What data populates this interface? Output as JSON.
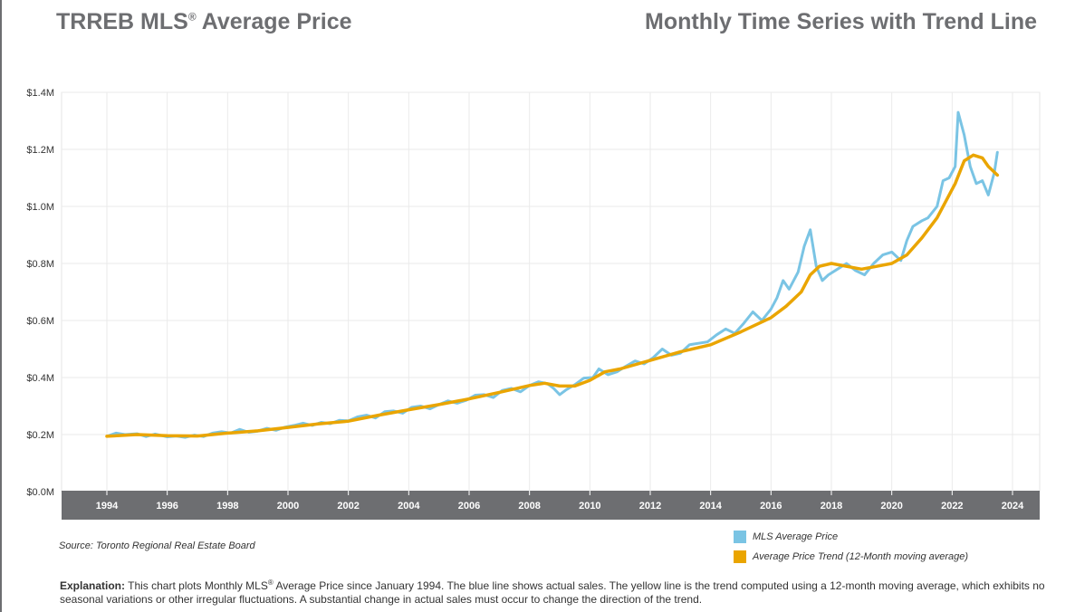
{
  "header": {
    "title_left_prefix": "TRREB MLS",
    "title_left_reg": "®",
    "title_left_suffix": " Average Price",
    "title_right": "Monthly Time Series with Trend Line"
  },
  "source": "Source: Toronto Regional Real Estate Board",
  "legend": [
    {
      "label": "MLS Average Price",
      "color": "#7ac4e4"
    },
    {
      "label": "Average Price Trend (12-Month moving average)",
      "color": "#eaa500"
    }
  ],
  "explanation": {
    "label": "Explanation:",
    "text_a": " This chart plots Monthly MLS",
    "reg": "®",
    "text_b": " Average Price since January 1994. The blue line shows actual sales. The yellow line is the trend computed using a 12-month moving average, which exhibits no seasonal variations or other irregular fluctuations. A substantial change in actual sales must occur to change the direction of the trend."
  },
  "chart_data": {
    "type": "line",
    "title": "",
    "xlabel": "",
    "ylabel": "",
    "xlim": [
      1992.5,
      2024.9
    ],
    "ylim": [
      0,
      1400000
    ],
    "x_ticks": [
      1994,
      1996,
      1998,
      2000,
      2002,
      2004,
      2006,
      2008,
      2010,
      2012,
      2014,
      2016,
      2018,
      2020,
      2022,
      2024
    ],
    "y_ticks": [
      {
        "value": 0,
        "label": "$0.0M"
      },
      {
        "value": 200000,
        "label": "$0.2M"
      },
      {
        "value": 400000,
        "label": "$0.4M"
      },
      {
        "value": 600000,
        "label": "$0.6M"
      },
      {
        "value": 800000,
        "label": "$0.8M"
      },
      {
        "value": 1000000,
        "label": "$1.0M"
      },
      {
        "value": 1200000,
        "label": "$1.2M"
      },
      {
        "value": 1400000,
        "label": "$1.4M"
      }
    ],
    "grid": true,
    "legend_position": "bottom-right",
    "series": [
      {
        "name": "MLS Average Price",
        "color": "#7ac4e4",
        "points": [
          [
            1994.0,
            194000
          ],
          [
            1994.3,
            205000
          ],
          [
            1994.6,
            200000
          ],
          [
            1995.0,
            203000
          ],
          [
            1995.3,
            193000
          ],
          [
            1995.6,
            202000
          ],
          [
            1996.0,
            192000
          ],
          [
            1996.3,
            195000
          ],
          [
            1996.6,
            190000
          ],
          [
            1996.9,
            198000
          ],
          [
            1997.2,
            193000
          ],
          [
            1997.5,
            205000
          ],
          [
            1997.8,
            210000
          ],
          [
            1998.1,
            205000
          ],
          [
            1998.4,
            218000
          ],
          [
            1998.7,
            208000
          ],
          [
            1999.0,
            212000
          ],
          [
            1999.3,
            222000
          ],
          [
            1999.6,
            215000
          ],
          [
            1999.9,
            226000
          ],
          [
            2000.2,
            232000
          ],
          [
            2000.5,
            240000
          ],
          [
            2000.8,
            232000
          ],
          [
            2001.1,
            243000
          ],
          [
            2001.4,
            238000
          ],
          [
            2001.7,
            250000
          ],
          [
            2002.0,
            248000
          ],
          [
            2002.3,
            262000
          ],
          [
            2002.6,
            268000
          ],
          [
            2002.9,
            258000
          ],
          [
            2003.2,
            280000
          ],
          [
            2003.5,
            283000
          ],
          [
            2003.8,
            275000
          ],
          [
            2004.1,
            296000
          ],
          [
            2004.4,
            300000
          ],
          [
            2004.7,
            290000
          ],
          [
            2005.0,
            305000
          ],
          [
            2005.3,
            318000
          ],
          [
            2005.6,
            310000
          ],
          [
            2005.9,
            320000
          ],
          [
            2006.2,
            338000
          ],
          [
            2006.5,
            340000
          ],
          [
            2006.8,
            330000
          ],
          [
            2007.1,
            355000
          ],
          [
            2007.4,
            362000
          ],
          [
            2007.7,
            350000
          ],
          [
            2008.0,
            372000
          ],
          [
            2008.3,
            385000
          ],
          [
            2008.6,
            378000
          ],
          [
            2008.8,
            362000
          ],
          [
            2009.0,
            340000
          ],
          [
            2009.2,
            356000
          ],
          [
            2009.5,
            375000
          ],
          [
            2009.8,
            398000
          ],
          [
            2010.1,
            400000
          ],
          [
            2010.3,
            430000
          ],
          [
            2010.6,
            410000
          ],
          [
            2010.9,
            420000
          ],
          [
            2011.2,
            440000
          ],
          [
            2011.5,
            458000
          ],
          [
            2011.8,
            448000
          ],
          [
            2012.1,
            470000
          ],
          [
            2012.4,
            500000
          ],
          [
            2012.7,
            478000
          ],
          [
            2013.0,
            485000
          ],
          [
            2013.3,
            515000
          ],
          [
            2013.6,
            520000
          ],
          [
            2013.9,
            525000
          ],
          [
            2014.2,
            550000
          ],
          [
            2014.5,
            570000
          ],
          [
            2014.8,
            555000
          ],
          [
            2015.1,
            590000
          ],
          [
            2015.4,
            630000
          ],
          [
            2015.7,
            600000
          ],
          [
            2016.0,
            640000
          ],
          [
            2016.2,
            680000
          ],
          [
            2016.4,
            740000
          ],
          [
            2016.6,
            710000
          ],
          [
            2016.9,
            770000
          ],
          [
            2017.1,
            860000
          ],
          [
            2017.3,
            918000
          ],
          [
            2017.5,
            790000
          ],
          [
            2017.7,
            740000
          ],
          [
            2017.9,
            760000
          ],
          [
            2018.2,
            780000
          ],
          [
            2018.5,
            800000
          ],
          [
            2018.8,
            775000
          ],
          [
            2019.1,
            760000
          ],
          [
            2019.4,
            800000
          ],
          [
            2019.7,
            830000
          ],
          [
            2020.0,
            840000
          ],
          [
            2020.3,
            810000
          ],
          [
            2020.5,
            880000
          ],
          [
            2020.7,
            930000
          ],
          [
            2021.0,
            950000
          ],
          [
            2021.2,
            960000
          ],
          [
            2021.5,
            1000000
          ],
          [
            2021.7,
            1090000
          ],
          [
            2021.9,
            1100000
          ],
          [
            2022.1,
            1140000
          ],
          [
            2022.2,
            1330000
          ],
          [
            2022.4,
            1250000
          ],
          [
            2022.6,
            1140000
          ],
          [
            2022.8,
            1080000
          ],
          [
            2023.0,
            1090000
          ],
          [
            2023.2,
            1040000
          ],
          [
            2023.4,
            1120000
          ],
          [
            2023.5,
            1190000
          ]
        ]
      },
      {
        "name": "Average Price Trend (12-Month moving average)",
        "color": "#eaa500",
        "points": [
          [
            1994.0,
            194000
          ],
          [
            1995.0,
            200000
          ],
          [
            1996.0,
            196000
          ],
          [
            1997.0,
            195000
          ],
          [
            1998.0,
            205000
          ],
          [
            1999.0,
            213000
          ],
          [
            2000.0,
            225000
          ],
          [
            2001.0,
            237000
          ],
          [
            2002.0,
            247000
          ],
          [
            2003.0,
            268000
          ],
          [
            2004.0,
            287000
          ],
          [
            2005.0,
            305000
          ],
          [
            2006.0,
            325000
          ],
          [
            2007.0,
            348000
          ],
          [
            2008.0,
            372000
          ],
          [
            2008.5,
            380000
          ],
          [
            2009.0,
            370000
          ],
          [
            2009.5,
            370000
          ],
          [
            2010.0,
            390000
          ],
          [
            2010.5,
            420000
          ],
          [
            2011.0,
            430000
          ],
          [
            2012.0,
            460000
          ],
          [
            2013.0,
            490000
          ],
          [
            2014.0,
            515000
          ],
          [
            2015.0,
            560000
          ],
          [
            2016.0,
            610000
          ],
          [
            2016.5,
            650000
          ],
          [
            2017.0,
            700000
          ],
          [
            2017.3,
            760000
          ],
          [
            2017.6,
            790000
          ],
          [
            2018.0,
            800000
          ],
          [
            2018.5,
            790000
          ],
          [
            2019.0,
            780000
          ],
          [
            2019.5,
            790000
          ],
          [
            2020.0,
            800000
          ],
          [
            2020.5,
            830000
          ],
          [
            2021.0,
            890000
          ],
          [
            2021.5,
            960000
          ],
          [
            2021.8,
            1020000
          ],
          [
            2022.1,
            1080000
          ],
          [
            2022.4,
            1160000
          ],
          [
            2022.7,
            1180000
          ],
          [
            2023.0,
            1170000
          ],
          [
            2023.2,
            1140000
          ],
          [
            2023.5,
            1110000
          ]
        ]
      }
    ]
  }
}
